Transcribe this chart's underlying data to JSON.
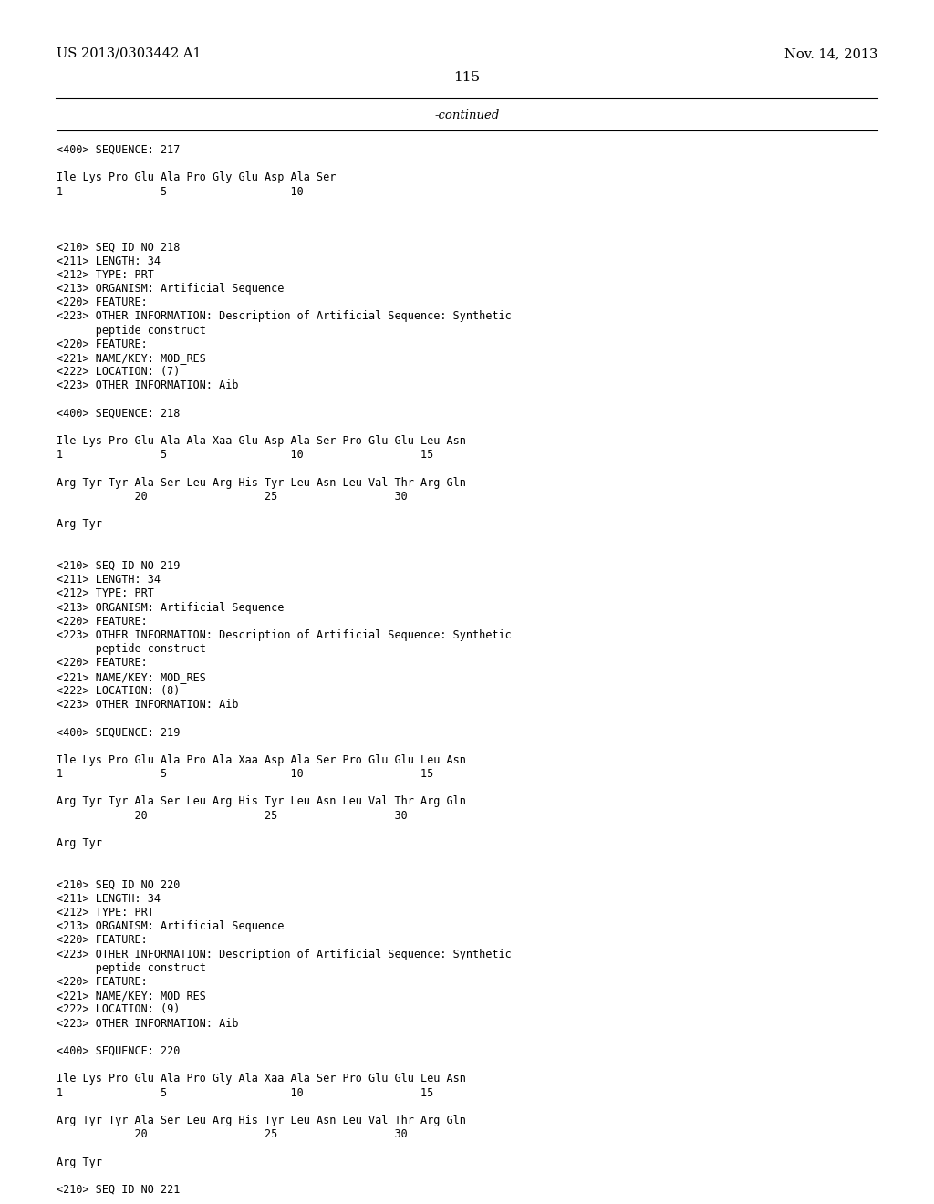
{
  "background_color": "#ffffff",
  "header_left": "US 2013/0303442 A1",
  "header_right": "Nov. 14, 2013",
  "page_number": "115",
  "continued_text": "-continued",
  "font_size_header": 10.5,
  "font_size_body": 9.5,
  "font_size_page": 11,
  "font_size_mono": 8.5,
  "lines": [
    {
      "text": "<400> SEQUENCE: 217"
    },
    {
      "text": ""
    },
    {
      "text": "Ile Lys Pro Glu Ala Pro Gly Glu Asp Ala Ser"
    },
    {
      "text": "1               5                   10"
    },
    {
      "text": ""
    },
    {
      "text": ""
    },
    {
      "text": ""
    },
    {
      "text": "<210> SEQ ID NO 218"
    },
    {
      "text": "<211> LENGTH: 34"
    },
    {
      "text": "<212> TYPE: PRT"
    },
    {
      "text": "<213> ORGANISM: Artificial Sequence"
    },
    {
      "text": "<220> FEATURE:"
    },
    {
      "text": "<223> OTHER INFORMATION: Description of Artificial Sequence: Synthetic"
    },
    {
      "text": "      peptide construct"
    },
    {
      "text": "<220> FEATURE:"
    },
    {
      "text": "<221> NAME/KEY: MOD_RES"
    },
    {
      "text": "<222> LOCATION: (7)"
    },
    {
      "text": "<223> OTHER INFORMATION: Aib"
    },
    {
      "text": ""
    },
    {
      "text": "<400> SEQUENCE: 218"
    },
    {
      "text": ""
    },
    {
      "text": "Ile Lys Pro Glu Ala Ala Xaa Glu Asp Ala Ser Pro Glu Glu Leu Asn"
    },
    {
      "text": "1               5                   10                  15"
    },
    {
      "text": ""
    },
    {
      "text": "Arg Tyr Tyr Ala Ser Leu Arg His Tyr Leu Asn Leu Val Thr Arg Gln"
    },
    {
      "text": "            20                  25                  30"
    },
    {
      "text": ""
    },
    {
      "text": "Arg Tyr"
    },
    {
      "text": ""
    },
    {
      "text": ""
    },
    {
      "text": "<210> SEQ ID NO 219"
    },
    {
      "text": "<211> LENGTH: 34"
    },
    {
      "text": "<212> TYPE: PRT"
    },
    {
      "text": "<213> ORGANISM: Artificial Sequence"
    },
    {
      "text": "<220> FEATURE:"
    },
    {
      "text": "<223> OTHER INFORMATION: Description of Artificial Sequence: Synthetic"
    },
    {
      "text": "      peptide construct"
    },
    {
      "text": "<220> FEATURE:"
    },
    {
      "text": "<221> NAME/KEY: MOD_RES"
    },
    {
      "text": "<222> LOCATION: (8)"
    },
    {
      "text": "<223> OTHER INFORMATION: Aib"
    },
    {
      "text": ""
    },
    {
      "text": "<400> SEQUENCE: 219"
    },
    {
      "text": ""
    },
    {
      "text": "Ile Lys Pro Glu Ala Pro Ala Xaa Asp Ala Ser Pro Glu Glu Leu Asn"
    },
    {
      "text": "1               5                   10                  15"
    },
    {
      "text": ""
    },
    {
      "text": "Arg Tyr Tyr Ala Ser Leu Arg His Tyr Leu Asn Leu Val Thr Arg Gln"
    },
    {
      "text": "            20                  25                  30"
    },
    {
      "text": ""
    },
    {
      "text": "Arg Tyr"
    },
    {
      "text": ""
    },
    {
      "text": ""
    },
    {
      "text": "<210> SEQ ID NO 220"
    },
    {
      "text": "<211> LENGTH: 34"
    },
    {
      "text": "<212> TYPE: PRT"
    },
    {
      "text": "<213> ORGANISM: Artificial Sequence"
    },
    {
      "text": "<220> FEATURE:"
    },
    {
      "text": "<223> OTHER INFORMATION: Description of Artificial Sequence: Synthetic"
    },
    {
      "text": "      peptide construct"
    },
    {
      "text": "<220> FEATURE:"
    },
    {
      "text": "<221> NAME/KEY: MOD_RES"
    },
    {
      "text": "<222> LOCATION: (9)"
    },
    {
      "text": "<223> OTHER INFORMATION: Aib"
    },
    {
      "text": ""
    },
    {
      "text": "<400> SEQUENCE: 220"
    },
    {
      "text": ""
    },
    {
      "text": "Ile Lys Pro Glu Ala Pro Gly Ala Xaa Ala Ser Pro Glu Glu Leu Asn"
    },
    {
      "text": "1               5                   10                  15"
    },
    {
      "text": ""
    },
    {
      "text": "Arg Tyr Tyr Ala Ser Leu Arg His Tyr Leu Asn Leu Val Thr Arg Gln"
    },
    {
      "text": "            20                  25                  30"
    },
    {
      "text": ""
    },
    {
      "text": "Arg Tyr"
    },
    {
      "text": ""
    },
    {
      "text": "<210> SEQ ID NO 221"
    }
  ]
}
